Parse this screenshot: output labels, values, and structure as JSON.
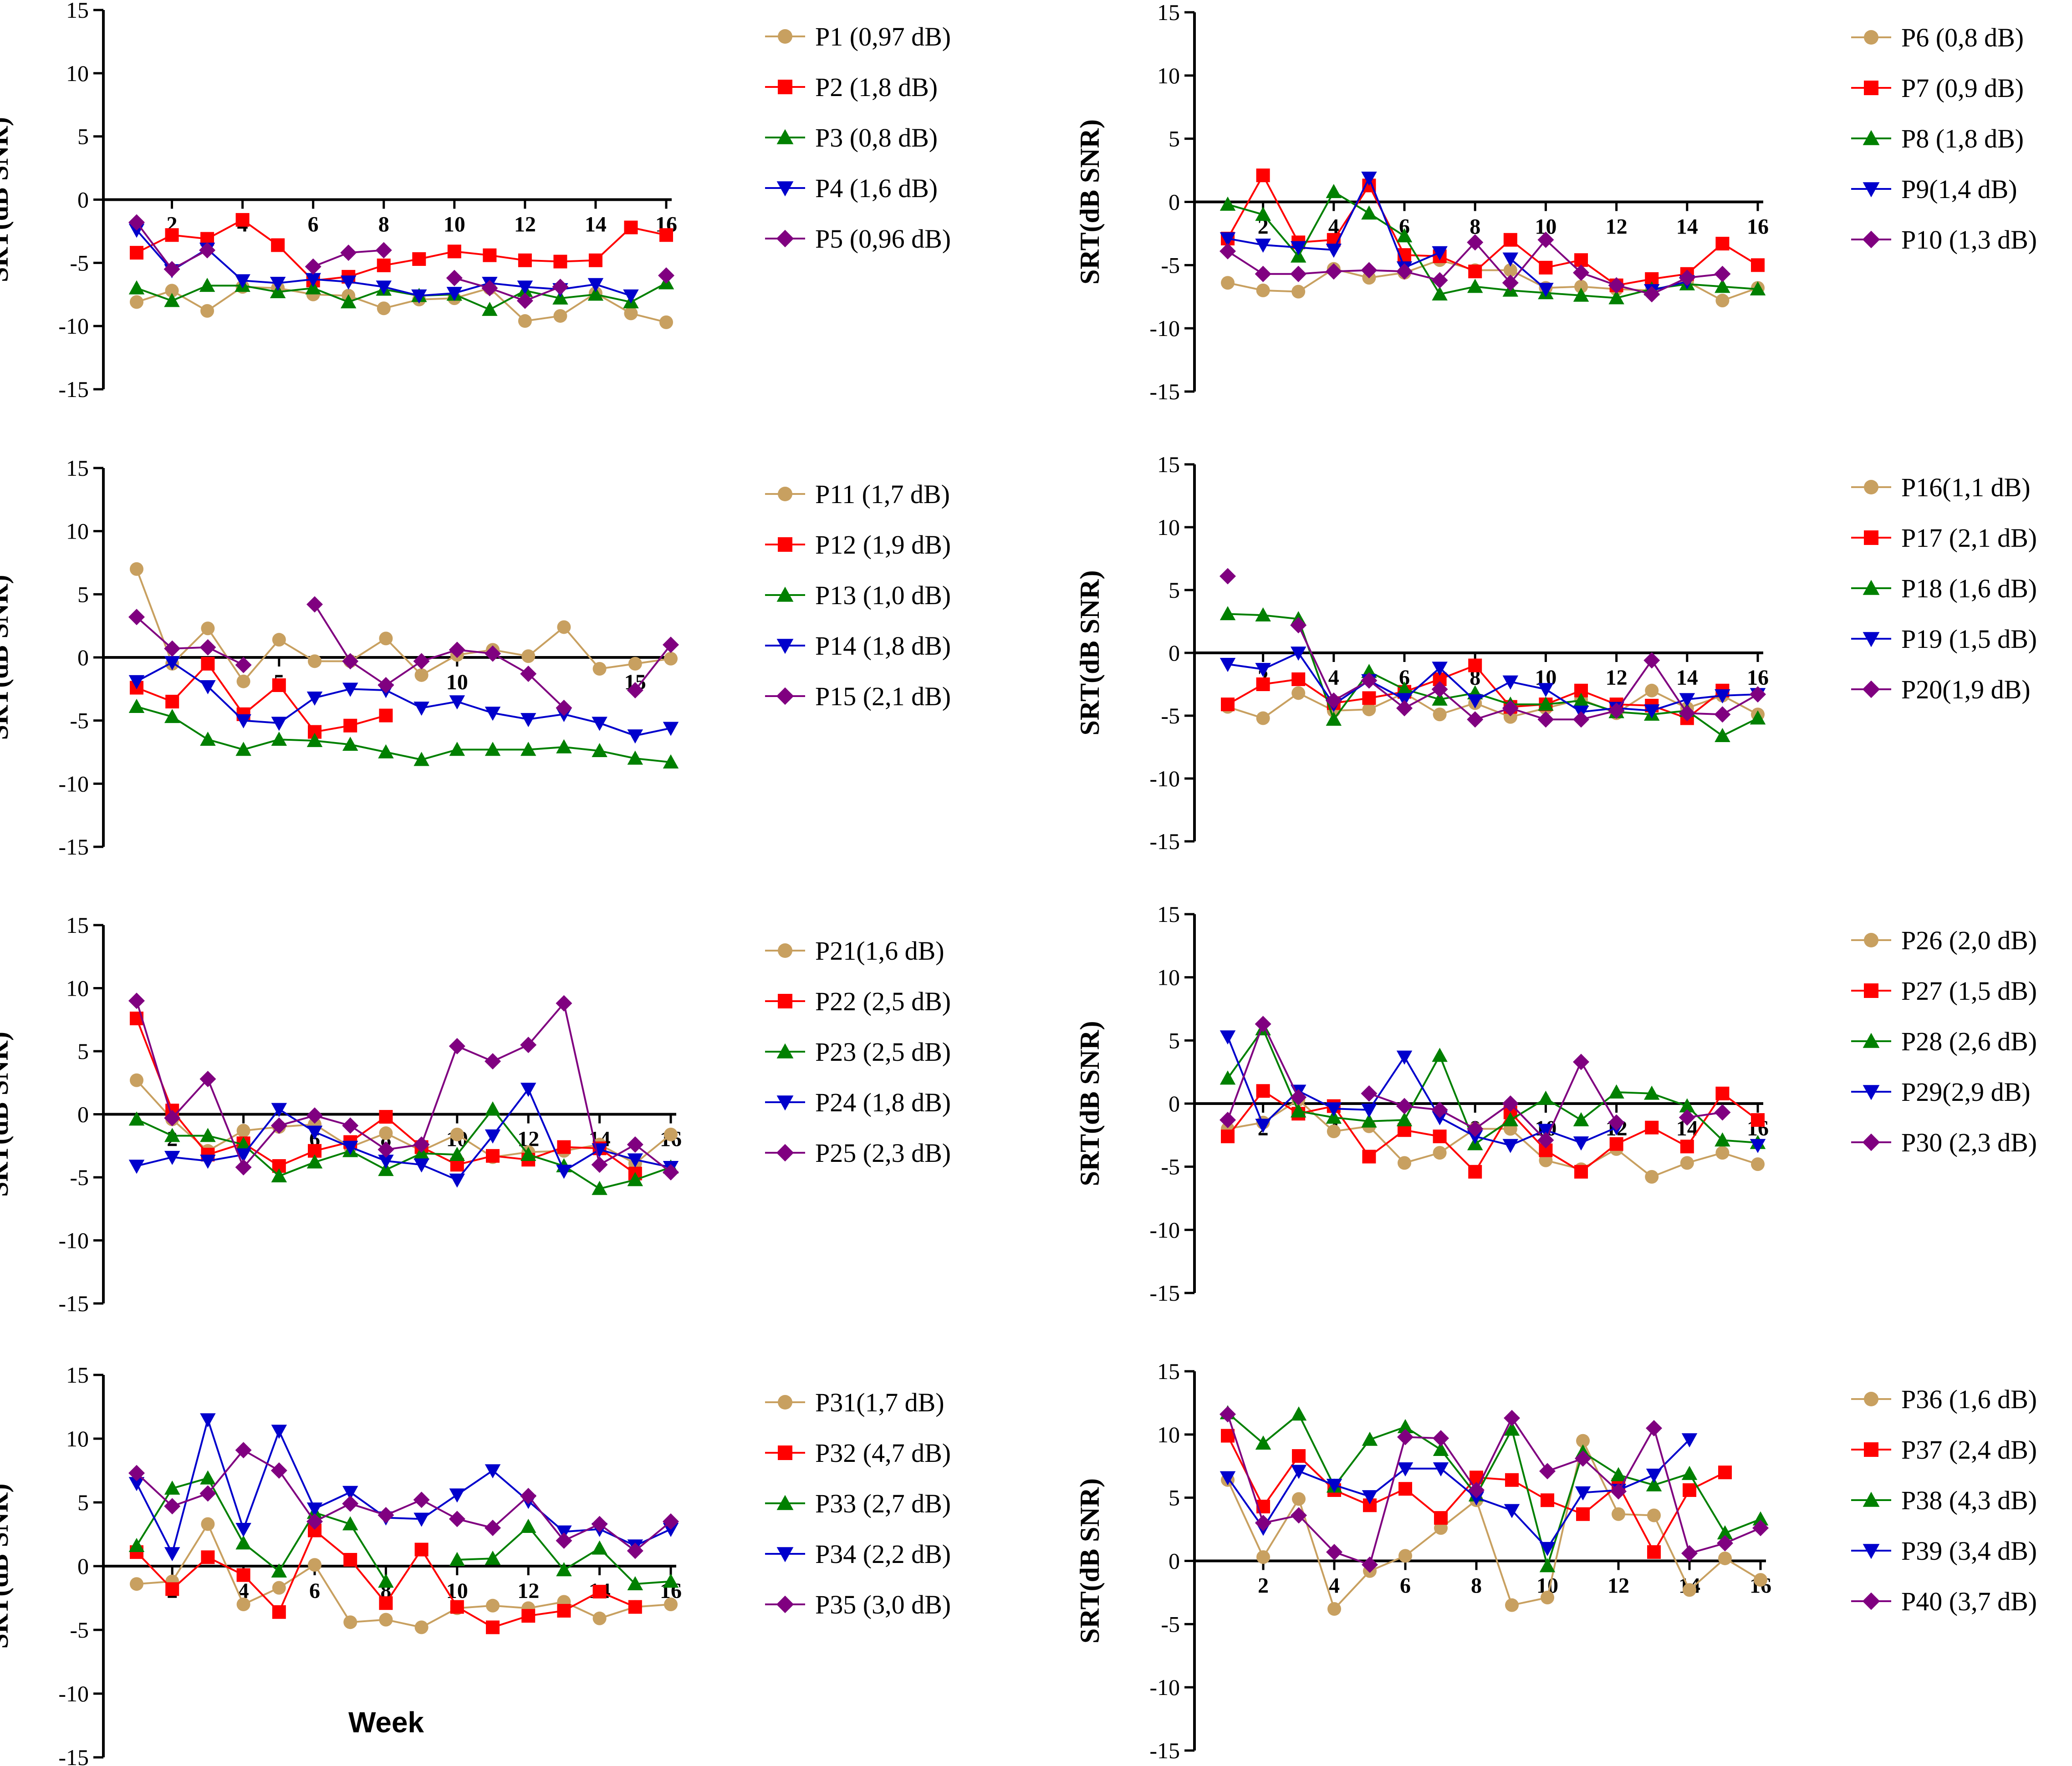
{
  "colors": {
    "s1": "#C8A060",
    "s2": "#FF0000",
    "s3": "#008000",
    "s4": "#0000CC",
    "s5": "#800080",
    "axis": "#000000"
  },
  "figure_xlabel": "Week",
  "chart_data": [
    {
      "type": "line",
      "ylabel": "SRT(dB SNR)",
      "ylim": [
        -15,
        15
      ],
      "yticks": [
        15,
        10,
        5,
        0,
        -5,
        -10,
        -15
      ],
      "xlim": [
        1,
        16
      ],
      "xticks": [
        2,
        4,
        6,
        8,
        10,
        12,
        14,
        16
      ],
      "series": [
        {
          "name": "P1 (0,97 dB)",
          "values": [
            -8.1,
            -7.2,
            -8.8,
            -6.9,
            -7.0,
            -7.5,
            -7.6,
            -8.6,
            -7.9,
            -7.8,
            -7.0,
            -9.6,
            -9.2,
            -7.4,
            -9.0,
            -9.7
          ]
        },
        {
          "name": "P2 (1,8 dB)",
          "values": [
            -4.2,
            -2.8,
            -3.1,
            -1.6,
            -3.6,
            -6.4,
            -6.1,
            -5.2,
            -4.7,
            -4.1,
            -4.4,
            -4.8,
            -4.9,
            -4.8,
            -2.2,
            -2.8
          ]
        },
        {
          "name": "P3 (0,8 dB)",
          "values": [
            -7.0,
            -8.0,
            -6.8,
            -6.8,
            -7.3,
            -7.0,
            -8.1,
            -7.1,
            -7.6,
            -7.5,
            -8.7,
            -7.2,
            -7.8,
            -7.5,
            -8.1,
            -6.6
          ]
        },
        {
          "name": "P4 (1,6 dB)",
          "values": [
            -2.4,
            -5.6,
            -3.9,
            -6.4,
            -6.6,
            -6.3,
            -6.5,
            -6.9,
            -7.6,
            -7.4,
            -6.6,
            -6.9,
            -7.1,
            -6.7,
            -7.6,
            null
          ]
        },
        {
          "name": "P5 (0,96 dB)",
          "values": [
            -1.8,
            -5.5,
            -4.0,
            null,
            null,
            -5.3,
            -4.2,
            -4.0,
            null,
            -6.2,
            -7.0,
            -8.0,
            -6.9,
            null,
            null,
            -6.0
          ]
        }
      ]
    },
    {
      "type": "line",
      "ylabel": "SRT(dB SNR)",
      "ylim": [
        -15,
        15
      ],
      "yticks": [
        15,
        10,
        5,
        0,
        -5,
        -10,
        -15
      ],
      "xlim": [
        1,
        16
      ],
      "xticks": [
        2,
        4,
        6,
        8,
        10,
        12,
        14,
        16
      ],
      "series": [
        {
          "name": "P6 (0,8 dB)",
          "values": [
            -6.4,
            -7.0,
            -7.1,
            -5.3,
            -6.0,
            -5.6,
            -4.6,
            -5.4,
            -5.4,
            -6.8,
            -6.7,
            -6.9,
            -7.0,
            -6.3,
            -7.8,
            -6.8
          ]
        },
        {
          "name": "P7 (0,9 dB)",
          "values": [
            -2.9,
            2.1,
            -3.2,
            -3.0,
            1.3,
            -4.2,
            -4.3,
            -5.5,
            -3.0,
            -5.2,
            -4.6,
            -6.6,
            -6.1,
            -5.7,
            -3.3,
            -5.0
          ]
        },
        {
          "name": "P8 (1,8 dB)",
          "values": [
            -0.2,
            -1.0,
            -4.3,
            0.8,
            -0.9,
            -2.7,
            -7.3,
            -6.7,
            -7.0,
            -7.2,
            -7.4,
            -7.6,
            -6.9,
            -6.5,
            -6.7,
            -6.9
          ]
        },
        {
          "name": "P9(1,4 dB)",
          "values": [
            -2.9,
            -3.4,
            -3.6,
            -3.8,
            1.9,
            -5.2,
            -4.0,
            null,
            -4.5,
            -6.9,
            null,
            null,
            -7.0,
            -6.3,
            null,
            null
          ]
        },
        {
          "name": "P10 (1,3 dB)",
          "values": [
            -3.9,
            -5.7,
            -5.7,
            -5.5,
            -5.4,
            -5.5,
            -6.2,
            -3.2,
            -6.4,
            -3.0,
            -5.6,
            -6.6,
            -7.3,
            -6.0,
            -5.7,
            null
          ]
        }
      ]
    },
    {
      "type": "line",
      "ylabel": "SRT(dB SNR)",
      "ylim": [
        -15,
        15
      ],
      "yticks": [
        15,
        10,
        5,
        0,
        -5,
        -10,
        -15
      ],
      "xlim": [
        1,
        16
      ],
      "xticks": [
        5,
        10,
        15
      ],
      "series": [
        {
          "name": "P11 (1,7 dB)",
          "values": [
            7.0,
            -0.5,
            2.3,
            -1.9,
            1.4,
            -0.3,
            -0.3,
            1.5,
            -1.4,
            0.2,
            0.6,
            0.1,
            2.4,
            -0.9,
            -0.5,
            -0.1
          ]
        },
        {
          "name": "P12 (1,9 dB)",
          "values": [
            -2.4,
            -3.5,
            -0.5,
            -4.5,
            -2.2,
            -5.9,
            -5.4,
            -4.6,
            null,
            null,
            null,
            null,
            null,
            null,
            null,
            null
          ]
        },
        {
          "name": "P13 (1,0 dB)",
          "values": [
            -3.9,
            -4.7,
            -6.5,
            -7.3,
            -6.5,
            -6.6,
            -6.9,
            -7.5,
            -8.1,
            -7.3,
            -7.3,
            -7.3,
            -7.1,
            -7.4,
            -8.0,
            -8.3
          ]
        },
        {
          "name": "P14 (1,8 dB)",
          "values": [
            -1.9,
            -0.4,
            -2.3,
            -5.0,
            -5.2,
            -3.2,
            -2.5,
            -2.6,
            -4.0,
            -3.5,
            -4.4,
            -4.9,
            -4.5,
            -5.2,
            -6.2,
            -5.6
          ]
        },
        {
          "name": "P15 (2,1 dB)",
          "values": [
            3.2,
            0.7,
            0.8,
            -0.6,
            null,
            4.2,
            -0.3,
            -2.2,
            -0.3,
            0.6,
            0.3,
            -1.3,
            -4.0,
            null,
            -2.6,
            1.0
          ]
        }
      ]
    },
    {
      "type": "line",
      "ylabel": "SRT(dB SNR)",
      "ylim": [
        -15,
        15
      ],
      "yticks": [
        15,
        10,
        5,
        0,
        -5,
        -10,
        -15
      ],
      "xlim": [
        1,
        16
      ],
      "xticks": [
        2,
        4,
        6,
        8,
        10,
        12,
        14,
        16
      ],
      "series": [
        {
          "name": "P16(1,1 dB)",
          "values": [
            -4.3,
            -5.2,
            -3.2,
            -4.6,
            -4.5,
            -3.2,
            -4.9,
            -4.0,
            -5.1,
            -4.4,
            -3.7,
            -4.8,
            -3.0,
            -4.4,
            -3.4,
            -4.9
          ]
        },
        {
          "name": "P17 (2,1 dB)",
          "values": [
            -4.1,
            -2.5,
            -2.1,
            -4.0,
            -3.6,
            -3.1,
            -2.1,
            -1.0,
            -4.3,
            -4.1,
            -3.0,
            -4.1,
            -4.2,
            -5.2,
            -3.0,
            null
          ]
        },
        {
          "name": "P18 (1,6 dB)",
          "values": [
            3.1,
            3.0,
            2.7,
            -5.3,
            -1.5,
            -2.9,
            -3.7,
            -3.2,
            -4.1,
            -4.1,
            -3.8,
            -4.7,
            -4.9,
            -4.6,
            -6.6,
            -5.2
          ]
        },
        {
          "name": "P19 (1,5 dB)",
          "values": [
            -0.9,
            -1.3,
            0.0,
            -4.1,
            -2.2,
            -3.7,
            -1.2,
            -3.8,
            -2.3,
            -2.9,
            -4.7,
            -4.4,
            -4.6,
            -3.7,
            -3.4,
            -3.3
          ]
        },
        {
          "name": "P20(1,9 dB)",
          "values": [
            6.1,
            null,
            2.2,
            -3.8,
            -2.2,
            -4.4,
            -2.9,
            -5.3,
            -4.4,
            -5.3,
            -5.3,
            -4.6,
            -0.6,
            -4.8,
            -4.9,
            -3.3
          ]
        }
      ]
    },
    {
      "type": "line",
      "ylabel": "SRT(dB SNR)",
      "ylim": [
        -15,
        15
      ],
      "yticks": [
        15,
        10,
        5,
        0,
        -5,
        -10,
        -15
      ],
      "xlim": [
        1,
        16
      ],
      "xticks": [
        2,
        4,
        6,
        8,
        10,
        12,
        14,
        16
      ],
      "series": [
        {
          "name": "P21(1,6 dB)",
          "values": [
            2.7,
            -0.4,
            -2.9,
            -1.3,
            -1.0,
            -0.8,
            -2.6,
            -1.5,
            -2.9,
            -1.6,
            -3.4,
            -3.0,
            -2.9,
            -2.4,
            -3.9,
            -1.6
          ]
        },
        {
          "name": "P22 (2,5 dB)",
          "values": [
            7.6,
            0.3,
            -3.2,
            -2.3,
            -4.1,
            -2.9,
            -2.2,
            -0.2,
            -2.6,
            -4.0,
            -3.3,
            -3.6,
            -2.6,
            -2.7,
            -4.7,
            null
          ]
        },
        {
          "name": "P23 (2,5 dB)",
          "values": [
            -0.4,
            -1.7,
            -1.7,
            -2.4,
            -4.9,
            -3.8,
            -2.9,
            -4.4,
            -3.1,
            -3.2,
            0.4,
            -3.2,
            -4.1,
            -5.9,
            -5.2,
            -4.2
          ]
        },
        {
          "name": "P24 (1,8 dB)",
          "values": [
            -4.1,
            -3.4,
            -3.7,
            -3.2,
            0.4,
            -1.4,
            -2.6,
            -3.7,
            -4.0,
            -5.2,
            -1.7,
            2.0,
            -4.5,
            -2.8,
            -3.6,
            -4.2
          ]
        },
        {
          "name": "P25 (2,3 dB)",
          "values": [
            9.0,
            -0.3,
            2.8,
            -4.2,
            -0.9,
            -0.1,
            -0.9,
            -2.8,
            -2.4,
            5.4,
            4.2,
            5.5,
            8.8,
            -4.0,
            -2.4,
            -4.6
          ]
        }
      ]
    },
    {
      "type": "line",
      "ylabel": "SRT(dB SNR)",
      "ylim": [
        -15,
        15
      ],
      "yticks": [
        15,
        10,
        5,
        0,
        -5,
        -10,
        -15
      ],
      "xlim": [
        1,
        16
      ],
      "xticks": [
        2,
        4,
        6,
        8,
        10,
        12,
        14,
        16
      ],
      "series": [
        {
          "name": "P26 (2,0 dB)",
          "values": [
            -2.0,
            -1.5,
            0.3,
            -2.2,
            -1.8,
            -4.7,
            -3.9,
            -2.0,
            -2.0,
            -4.5,
            -5.2,
            -3.6,
            -5.8,
            -4.7,
            -3.9,
            -4.8
          ]
        },
        {
          "name": "P27 (1,5 dB)",
          "values": [
            -2.6,
            1.0,
            -0.8,
            -0.2,
            -4.2,
            -2.1,
            -2.6,
            -5.4,
            -0.7,
            -3.7,
            -5.4,
            -3.2,
            -1.9,
            -3.4,
            0.8,
            -1.3
          ]
        },
        {
          "name": "P28 (2,6 dB)",
          "values": [
            2.0,
            5.9,
            -0.6,
            -1.1,
            -1.4,
            -1.3,
            3.8,
            -3.2,
            -1.3,
            0.4,
            -1.3,
            0.9,
            0.8,
            -0.2,
            -2.9,
            -3.1
          ]
        },
        {
          "name": "P29(2,9 dB)",
          "values": [
            5.3,
            -1.7,
            1.0,
            -0.4,
            -0.5,
            3.7,
            -1.1,
            -2.6,
            -3.3,
            -2.1,
            -3.1,
            -1.9,
            null,
            null,
            null,
            -3.3
          ]
        },
        {
          "name": "P30 (2,3 dB)",
          "values": [
            -1.3,
            6.3,
            0.5,
            null,
            0.8,
            -0.2,
            -0.5,
            -2.0,
            0.0,
            -2.9,
            3.3,
            -1.5,
            null,
            -1.1,
            -0.7,
            null
          ]
        }
      ]
    },
    {
      "type": "line",
      "ylabel": "SRT(dB SNR)",
      "ylim": [
        -15,
        15
      ],
      "yticks": [
        15,
        10,
        5,
        0,
        -5,
        -10,
        -15
      ],
      "xlim": [
        1,
        16
      ],
      "xticks": [
        2,
        4,
        6,
        8,
        10,
        12,
        14,
        16
      ],
      "series": [
        {
          "name": "P31(1,7 dB)",
          "values": [
            -1.4,
            -1.2,
            3.3,
            -3.0,
            -1.7,
            0.1,
            -4.4,
            -4.2,
            -4.8,
            -3.3,
            -3.1,
            -3.3,
            -2.8,
            -4.1,
            -3.2,
            -3.0
          ]
        },
        {
          "name": "P32 (4,7 dB)",
          "values": [
            1.1,
            -1.8,
            0.7,
            -0.7,
            -3.6,
            2.8,
            0.5,
            -2.9,
            1.3,
            -3.2,
            -4.8,
            -3.9,
            -3.5,
            -2.0,
            -3.2,
            null
          ]
        },
        {
          "name": "P33 (2,7 dB)",
          "values": [
            1.6,
            6.1,
            6.9,
            1.8,
            -0.4,
            4.2,
            3.3,
            -1.2,
            null,
            0.5,
            0.6,
            3.1,
            -0.3,
            1.4,
            -1.4,
            -1.2
          ]
        },
        {
          "name": "P34 (2,2 dB)",
          "values": [
            6.5,
            1.0,
            11.5,
            2.9,
            10.6,
            4.5,
            5.8,
            3.8,
            3.7,
            5.6,
            7.5,
            5.1,
            2.7,
            2.9,
            1.6,
            2.9
          ]
        },
        {
          "name": "P35 (3,0 dB)",
          "values": [
            7.3,
            4.7,
            5.7,
            9.1,
            7.5,
            3.5,
            4.9,
            4.0,
            5.2,
            3.7,
            3.0,
            5.5,
            2.0,
            3.3,
            1.2,
            3.5
          ]
        }
      ]
    },
    {
      "type": "line",
      "ylabel": "SRT(dB SNR)",
      "ylim": [
        -15,
        15
      ],
      "yticks": [
        15,
        10,
        5,
        0,
        -5,
        -10,
        -15
      ],
      "xlim": [
        1,
        16
      ],
      "xticks": [
        2,
        4,
        6,
        8,
        10,
        12,
        14,
        16
      ],
      "series": [
        {
          "name": "P36 (1,6 dB)",
          "values": [
            6.4,
            0.3,
            4.9,
            -3.8,
            -0.8,
            0.4,
            2.6,
            4.8,
            -3.5,
            -2.9,
            9.5,
            3.7,
            3.6,
            -2.3,
            0.2,
            -1.5
          ]
        },
        {
          "name": "P37 (2,4 dB)",
          "values": [
            9.9,
            4.3,
            8.3,
            5.6,
            4.4,
            5.7,
            3.4,
            6.6,
            6.4,
            4.8,
            3.7,
            6.0,
            0.7,
            5.6,
            7.0,
            null
          ]
        },
        {
          "name": "P38 (4,3 dB)",
          "values": [
            11.7,
            9.3,
            11.6,
            5.9,
            9.6,
            10.6,
            8.8,
            5.2,
            10.4,
            -0.4,
            8.6,
            6.8,
            6.0,
            6.9,
            2.2,
            3.3
          ]
        },
        {
          "name": "P39 (3,4 dB)",
          "values": [
            6.6,
            2.6,
            7.1,
            6.0,
            5.1,
            7.3,
            7.3,
            5.0,
            4.0,
            1.0,
            5.4,
            5.6,
            6.8,
            9.6,
            null,
            null
          ]
        },
        {
          "name": "P40 (3,7 dB)",
          "values": [
            11.6,
            3.0,
            3.6,
            0.7,
            -0.3,
            9.8,
            9.7,
            5.6,
            11.3,
            7.1,
            8.1,
            5.5,
            10.5,
            0.6,
            1.4,
            2.6
          ]
        }
      ]
    }
  ]
}
